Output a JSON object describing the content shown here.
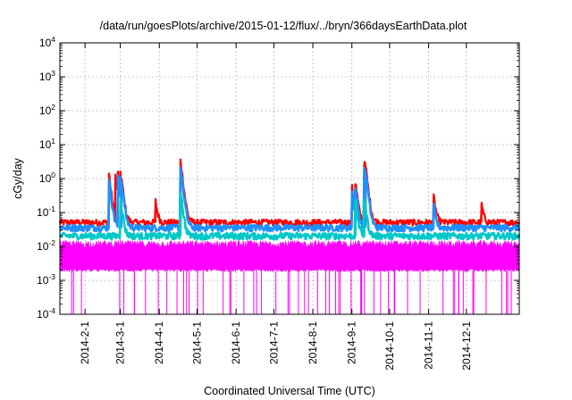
{
  "chart_data": {
    "type": "area",
    "title": "/data/run/goesPlots/archive/2015-01-12/flux/../bryn/366daysEarthData.plot",
    "xlabel": "Coordinated Universal Time (UTC)",
    "ylabel": "cGy/day",
    "yscale": "log",
    "ylim": [
      0.0001,
      10000
    ],
    "xlim": [
      "2014-01-12",
      "2015-01-12"
    ],
    "y_ticks": [
      {
        "base": "10",
        "exp": "-4",
        "value": 0.0001
      },
      {
        "base": "10",
        "exp": "-3",
        "value": 0.001
      },
      {
        "base": "10",
        "exp": "-2",
        "value": 0.01
      },
      {
        "base": "10",
        "exp": "-1",
        "value": 0.1
      },
      {
        "base": "10",
        "exp": "0",
        "value": 1
      },
      {
        "base": "10",
        "exp": "1",
        "value": 10
      },
      {
        "base": "10",
        "exp": "2",
        "value": 100
      },
      {
        "base": "10",
        "exp": "3",
        "value": 1000
      },
      {
        "base": "10",
        "exp": "4",
        "value": 10000
      }
    ],
    "x_ticks": [
      {
        "label": "2014-2-1",
        "date": "2014-02-01"
      },
      {
        "label": "2014-3-1",
        "date": "2014-03-01"
      },
      {
        "label": "2014-4-1",
        "date": "2014-04-01"
      },
      {
        "label": "2014-5-1",
        "date": "2014-05-01"
      },
      {
        "label": "2014-6-1",
        "date": "2014-06-01"
      },
      {
        "label": "2014-7-1",
        "date": "2014-07-01"
      },
      {
        "label": "2014-8-1",
        "date": "2014-08-01"
      },
      {
        "label": "2014-9-1",
        "date": "2014-09-01"
      },
      {
        "label": "2014-10-1",
        "date": "2014-10-01"
      },
      {
        "label": "2014-11-1",
        "date": "2014-11-01"
      },
      {
        "label": "2014-12-1",
        "date": "2014-12-01"
      }
    ],
    "grid": true,
    "legend": "none",
    "series": [
      {
        "color": "#ff0000",
        "baseline": 0.05,
        "events": [
          {
            "date": "2014-02-20",
            "value": 1.4
          },
          {
            "date": "2014-02-25",
            "value": 1.3
          },
          {
            "date": "2014-02-27",
            "value": 1.6
          },
          {
            "date": "2014-03-01",
            "value": 1.7
          },
          {
            "date": "2014-03-02",
            "value": 1.0
          },
          {
            "date": "2014-03-29",
            "value": 0.22
          },
          {
            "date": "2014-04-18",
            "value": 3.3
          },
          {
            "date": "2014-09-01",
            "value": 0.6
          },
          {
            "date": "2014-09-04",
            "value": 0.7
          },
          {
            "date": "2014-09-11",
            "value": 3.2
          },
          {
            "date": "2014-09-12",
            "value": 2.2
          },
          {
            "date": "2014-11-05",
            "value": 0.3
          },
          {
            "date": "2014-12-13",
            "value": 0.18
          }
        ]
      },
      {
        "color": "#1e90ff",
        "baseline": 0.035,
        "events": [
          {
            "date": "2014-02-20",
            "value": 1.0
          },
          {
            "date": "2014-02-27",
            "value": 1.1
          },
          {
            "date": "2014-03-01",
            "value": 1.2
          },
          {
            "date": "2014-03-02",
            "value": 0.8
          },
          {
            "date": "2014-04-18",
            "value": 2.0
          },
          {
            "date": "2014-09-01",
            "value": 0.45
          },
          {
            "date": "2014-09-04",
            "value": 0.5
          },
          {
            "date": "2014-09-11",
            "value": 2.2
          },
          {
            "date": "2014-09-12",
            "value": 1.5
          },
          {
            "date": "2014-11-05",
            "value": 0.15
          }
        ]
      },
      {
        "color": "#00c8c8",
        "baseline": 0.02,
        "events": [
          {
            "date": "2014-03-01",
            "value": 0.3
          },
          {
            "date": "2014-04-18",
            "value": 0.4
          },
          {
            "date": "2014-09-04",
            "value": 0.2
          },
          {
            "date": "2014-09-11",
            "value": 0.25
          }
        ]
      },
      {
        "color": "#ff00ff",
        "baseline": 0.002,
        "upper": 0.012,
        "events": [
          {
            "date": "2014-03-01",
            "value": 0.02
          },
          {
            "date": "2014-09-04",
            "value": 0.015
          }
        ]
      }
    ]
  }
}
